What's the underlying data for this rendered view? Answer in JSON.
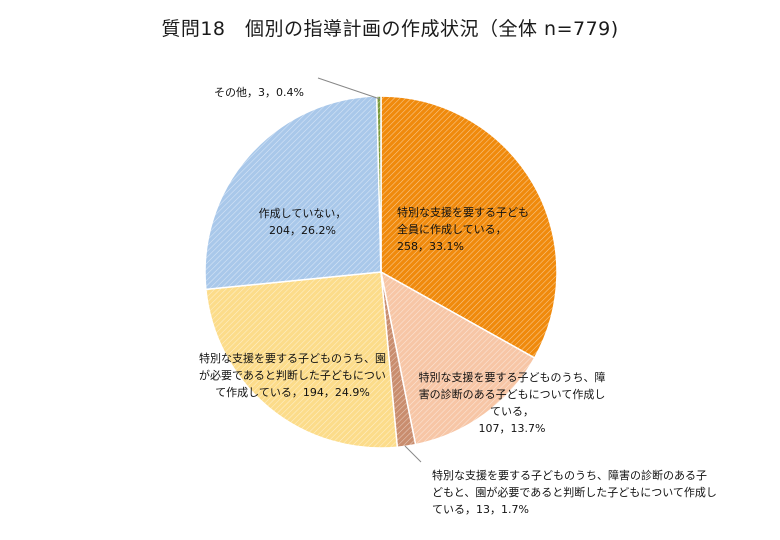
{
  "chart_data": {
    "type": "pie",
    "title": "質問18　個別の指導計画の作成状況（全体 n=779)",
    "slices": [
      {
        "label": "特別な支援を要する子ども全員に作成している",
        "count": 258,
        "percent": 33.1,
        "value_text": "258，33.1%",
        "color": "#f08a0c"
      },
      {
        "label": "特別な支援を要する子どものうち、障害の診断のある子どもについて作成している",
        "count": 107,
        "percent": 13.7,
        "value_text": "107，13.7%",
        "color": "#f7c6a6"
      },
      {
        "label": "特別な支援を要する子どものうち、障害の診断のある子どもと、園が必要であると判断した子どもについて作成している",
        "count": 13,
        "percent": 1.7,
        "value_text": "13，1.7%",
        "color": "#c98d6e"
      },
      {
        "label": "特別な支援を要する子どものうち、園が必要であると判断した子どもについて作成している",
        "count": 194,
        "percent": 24.9,
        "value_text": "194，24.9%",
        "color": "#fcdc8a"
      },
      {
        "label": "作成していない",
        "count": 204,
        "percent": 26.2,
        "value_text": "204，26.2%",
        "color": "#a9c8ea"
      },
      {
        "label": "その他",
        "count": 3,
        "percent": 0.4,
        "value_text": "3，0.4%",
        "color": "#7a9a3a"
      }
    ]
  }
}
